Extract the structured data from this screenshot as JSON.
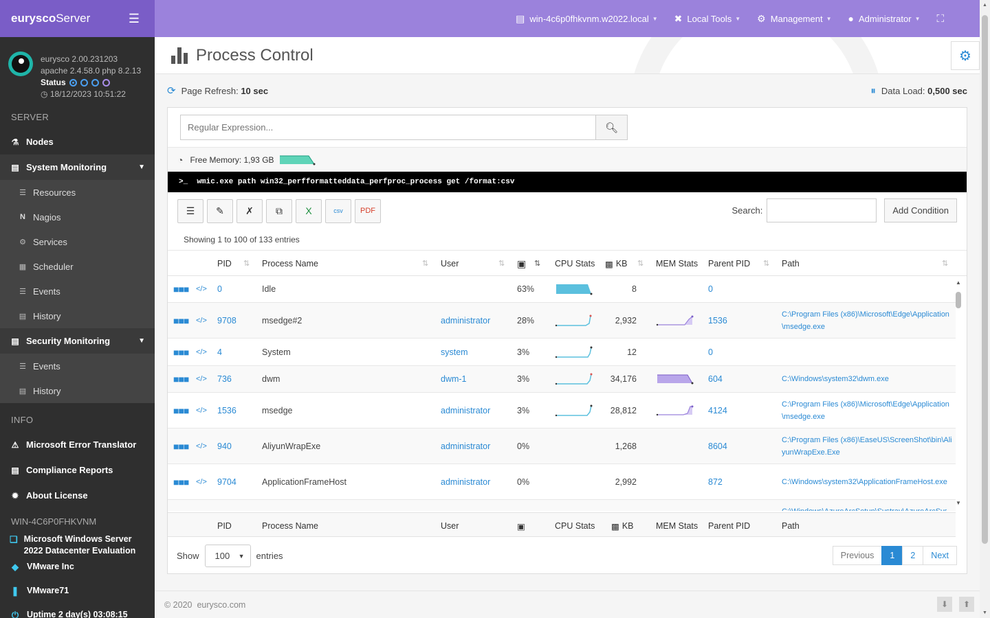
{
  "app": {
    "brand_bold": "eurysco",
    "brand_rest": "Server"
  },
  "sysinfo": {
    "version": "eurysco 2.00.231203",
    "stack": "apache 2.4.58.0  php 8.2.13",
    "status_label": "Status",
    "datetime": "18/12/2023 10:51:22"
  },
  "sidebar": {
    "server_head": "SERVER",
    "nodes": "Nodes",
    "system_monitoring": "System Monitoring",
    "system_items": [
      "Resources",
      "Nagios",
      "Services",
      "Scheduler",
      "Events",
      "History"
    ],
    "security_monitoring": "Security Monitoring",
    "security_items": [
      "Events",
      "History"
    ],
    "info_head": "INFO",
    "info_items": [
      "Microsoft Error Translator",
      "Compliance Reports",
      "About License"
    ],
    "host_head": "WIN-4C6P0FHKVNM",
    "host_items": [
      "Microsoft  Windows  Server 2022  Datacenter  Evaluation",
      "VMware Inc",
      "VMware71",
      "Uptime 2 day(s) 03:08:15"
    ]
  },
  "topbar": {
    "host": "win-4c6p0fhkvnm.w2022.local",
    "local_tools": "Local Tools",
    "management": "Management",
    "user": "Administrator"
  },
  "page": {
    "title": "Process Control",
    "refresh_label": "Page Refresh:",
    "refresh_value": "10 sec",
    "dataload_label": "Data Load:",
    "dataload_value": "0,500 sec"
  },
  "search": {
    "placeholder": "Regular Expression..."
  },
  "memory": {
    "label": "Free Memory:",
    "value": "1,93 GB"
  },
  "command": "wmic.exe path win32_perfformatteddata_perfproc_process get /format:csv",
  "table": {
    "search_label": "Search:",
    "add_condition": "Add Condition",
    "showing": "Showing 1 to 100 of 133 entries",
    "headers": {
      "pid": "PID",
      "name": "Process Name",
      "user": "User",
      "cpu_stats": "CPU Stats",
      "kb": "KB",
      "mem_stats": "MEM Stats",
      "ppid": "Parent PID",
      "path": "Path"
    },
    "rows": [
      {
        "pid": "0",
        "name": "Idle",
        "user": "",
        "cpu": "63%",
        "kb": "8",
        "ppid": "0",
        "path": ""
      },
      {
        "pid": "9708",
        "name": "msedge#2",
        "user": "administrator",
        "cpu": "28%",
        "kb": "2,932",
        "ppid": "1536",
        "path": "C:\\Program Files (x86)\\Microsoft\\Edge\\Application\\msedge.exe"
      },
      {
        "pid": "4",
        "name": "System",
        "user": "system",
        "cpu": "3%",
        "kb": "12",
        "ppid": "0",
        "path": ""
      },
      {
        "pid": "736",
        "name": "dwm",
        "user": "dwm-1",
        "cpu": "3%",
        "kb": "34,176",
        "ppid": "604",
        "path": "C:\\Windows\\system32\\dwm.exe"
      },
      {
        "pid": "1536",
        "name": "msedge",
        "user": "administrator",
        "cpu": "3%",
        "kb": "28,812",
        "ppid": "4124",
        "path": "C:\\Program Files (x86)\\Microsoft\\Edge\\Application\\msedge.exe"
      },
      {
        "pid": "940",
        "name": "AliyunWrapExe",
        "user": "administrator",
        "cpu": "0%",
        "kb": "1,268",
        "ppid": "8604",
        "path": "C:\\Program Files (x86)\\EaseUS\\ScreenShot\\bin\\AliyunWrapExe.Exe"
      },
      {
        "pid": "9704",
        "name": "ApplicationFrameHost",
        "user": "administrator",
        "cpu": "0%",
        "kb": "2,992",
        "ppid": "872",
        "path": "C:\\Windows\\system32\\ApplicationFrameHost.exe"
      },
      {
        "pid": "",
        "name": "",
        "user": "",
        "cpu": "",
        "kb": "",
        "ppid": "",
        "path": "C:\\Windows\\AzureArcSetup\\Systray\\AzureArcSys"
      }
    ]
  },
  "paging": {
    "show": "Show",
    "entries": "entries",
    "page_size": "100",
    "previous": "Previous",
    "pages": [
      "1",
      "2"
    ],
    "next": "Next"
  },
  "footer": {
    "copyright": "© 2020",
    "site": "eurysco.com"
  },
  "colors": {
    "brand": "#7a5dc7",
    "topbar": "#9b82dc",
    "link": "#2a8ad4",
    "cpu_spark": "#5bc0de",
    "mem_spark": "#b9a6ea",
    "mem_free": "#5fd4b8"
  }
}
